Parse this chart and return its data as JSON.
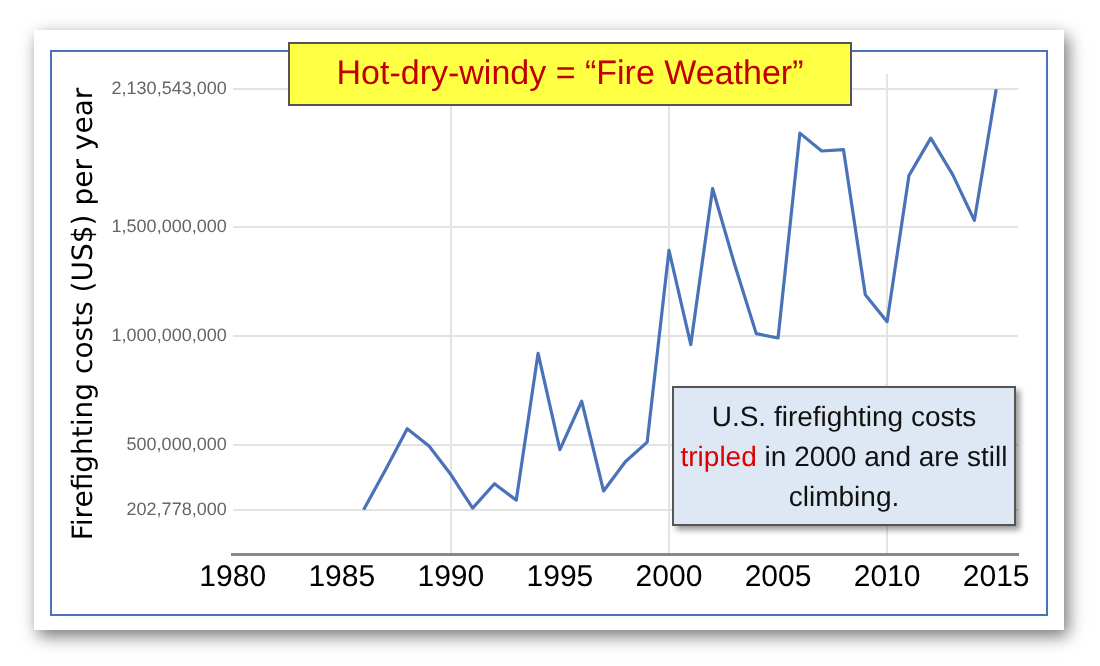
{
  "chart_data": {
    "type": "line",
    "title": "Hot-dry-windy = “Fire Weather”",
    "ylabel": "Firefighting costs (US$) per year",
    "x": [
      1986,
      1987,
      1988,
      1989,
      1990,
      1991,
      1992,
      1993,
      1994,
      1995,
      1996,
      1997,
      1998,
      1999,
      2000,
      2001,
      2002,
      2003,
      2004,
      2005,
      2006,
      2007,
      2008,
      2009,
      2010,
      2011,
      2012,
      2013,
      2014,
      2015
    ],
    "series": [
      {
        "color": "#4a72b8",
        "values": [
          202778000,
          385000000,
          574000000,
          495000000,
          364000000,
          210000000,
          322000000,
          247000000,
          920000000,
          478000000,
          700000000,
          289000000,
          423000000,
          513000000,
          1392000000,
          960000000,
          1675000000,
          1330000000,
          1010000000,
          990000000,
          1929000000,
          1847000000,
          1853000000,
          1188000000,
          1065000000,
          1734000000,
          1906000000,
          1740000000,
          1529000000,
          2130543000
        ]
      }
    ],
    "xlim": [
      1980,
      2016
    ],
    "xticks": [
      1980,
      1985,
      1990,
      1995,
      2000,
      2005,
      2010,
      2015
    ],
    "ylim": [
      0,
      2200000000
    ],
    "yticks": [
      {
        "value": 202778000,
        "label": "202,778,000"
      },
      {
        "value": 500000000,
        "label": "500,000,000"
      },
      {
        "value": 1000000000,
        "label": "1,000,000,000"
      },
      {
        "value": 1500000000,
        "label": "1,500,000,000"
      },
      {
        "value": 2130543000,
        "label": "2,130,543,000"
      }
    ],
    "grid": true,
    "legend": false,
    "marker": "none",
    "line_style": "solid",
    "annotations": [
      "U.S. firefighting costs tripled in 2000 and are still climbing."
    ]
  }
}
